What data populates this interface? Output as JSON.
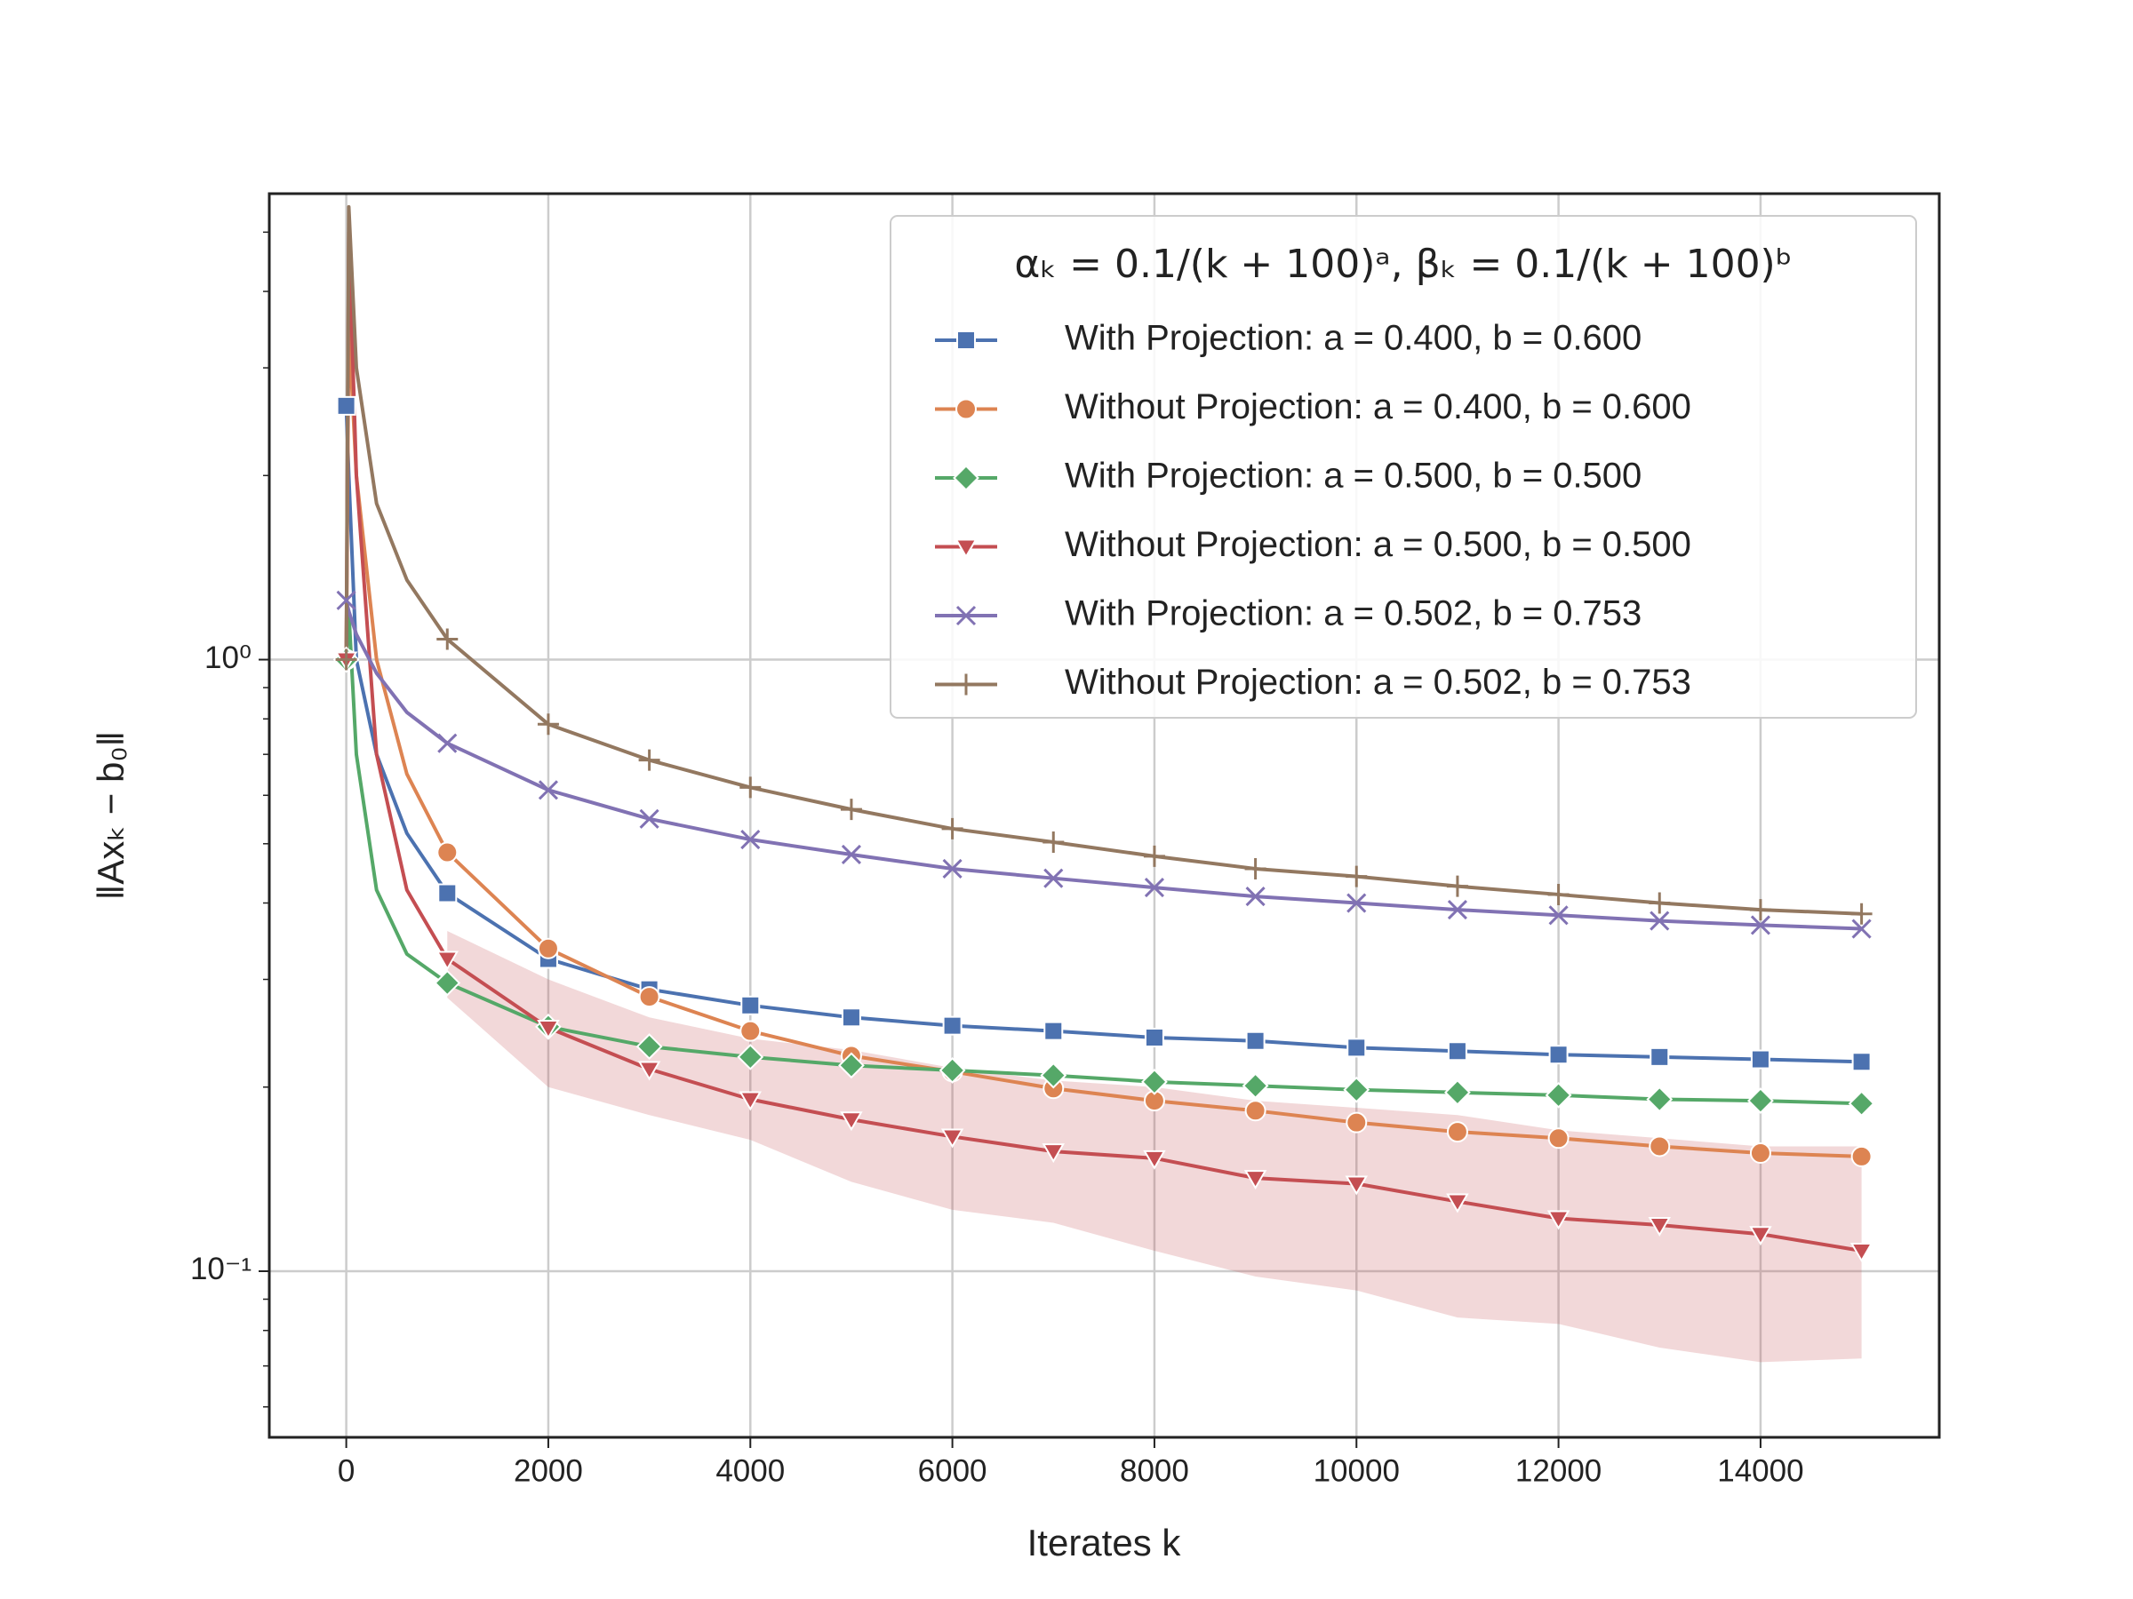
{
  "chart_data": {
    "type": "line",
    "xlabel": "Iterates k",
    "ylabel": "‖Axₖ − b₀‖",
    "legend_title": "αₖ = 0.1/(k + 100)ᵃ, βₖ = 0.1/(k + 100)ᵇ",
    "legend_position": "upper right",
    "grid": true,
    "yscale": "log",
    "xlim": [
      -762,
      15769
    ],
    "ylim": [
      0.0535,
      5.78
    ],
    "xticks": [
      0,
      2000,
      4000,
      6000,
      8000,
      10000,
      12000,
      14000
    ],
    "yticks": [
      {
        "value": 0.1,
        "label": "10⁻¹"
      },
      {
        "value": 1,
        "label": "10⁰"
      }
    ],
    "yminorticks": [
      0.06,
      0.07,
      0.08,
      0.09,
      0.2,
      0.3,
      0.4,
      0.5,
      0.6,
      0.7,
      0.8,
      0.9,
      2,
      3,
      4,
      5
    ],
    "x": [
      0,
      25,
      100,
      300,
      600,
      1000,
      2000,
      3000,
      4000,
      5000,
      6000,
      7000,
      8000,
      9000,
      10000,
      11000,
      12000,
      13000,
      14000,
      15000
    ],
    "series": [
      {
        "name": "With Projection: a = 0.400, b = 0.600",
        "color": "#4c72b0",
        "marker": "square",
        "values": [
          2.6,
          2.0,
          1.0,
          0.7,
          0.52,
          0.415,
          0.324,
          0.289,
          0.272,
          0.26,
          0.252,
          0.247,
          0.241,
          0.238,
          0.232,
          0.229,
          0.226,
          0.224,
          0.222,
          0.22
        ]
      },
      {
        "name": "Without Projection: a = 0.400, b = 0.600",
        "color": "#dd8452",
        "marker": "circle",
        "values": [
          1.0,
          3.5,
          2.0,
          1.0,
          0.65,
          0.484,
          0.337,
          0.281,
          0.247,
          0.225,
          0.212,
          0.199,
          0.19,
          0.183,
          0.175,
          0.169,
          0.165,
          0.16,
          0.156,
          0.154
        ]
      },
      {
        "name": "With Projection: a = 0.500, b = 0.500",
        "color": "#55a868",
        "marker": "diamond",
        "values": [
          1.0,
          1.2,
          0.7,
          0.42,
          0.33,
          0.296,
          0.251,
          0.233,
          0.224,
          0.217,
          0.213,
          0.209,
          0.204,
          0.201,
          0.198,
          0.196,
          0.194,
          0.191,
          0.19,
          0.188
        ]
      },
      {
        "name": "Without Projection: a = 0.500, b = 0.500",
        "color": "#c44e52",
        "marker": "triangle-down",
        "values": [
          1.0,
          5.0,
          2.0,
          0.7,
          0.42,
          0.324,
          0.25,
          0.214,
          0.191,
          0.177,
          0.166,
          0.157,
          0.153,
          0.142,
          0.139,
          0.13,
          0.122,
          0.119,
          0.115,
          0.108
        ],
        "band_lower": [
          null,
          null,
          null,
          null,
          null,
          0.28,
          0.2,
          0.18,
          0.164,
          0.14,
          0.126,
          0.12,
          0.108,
          0.098,
          0.093,
          0.084,
          0.082,
          0.075,
          0.071,
          0.072
        ],
        "band_upper": [
          null,
          null,
          null,
          null,
          null,
          0.36,
          0.3,
          0.26,
          0.24,
          0.23,
          0.215,
          0.205,
          0.2,
          0.19,
          0.185,
          0.18,
          0.17,
          0.165,
          0.16,
          0.16
        ]
      },
      {
        "name": "With Projection: a = 0.502, b = 0.753",
        "color": "#8172b3",
        "marker": "x",
        "values": [
          1.25,
          1.2,
          1.1,
          0.95,
          0.82,
          0.73,
          0.612,
          0.549,
          0.508,
          0.48,
          0.455,
          0.439,
          0.424,
          0.41,
          0.4,
          0.39,
          0.382,
          0.374,
          0.368,
          0.363
        ]
      },
      {
        "name": "Without Projection: a = 0.502, b = 0.753",
        "color": "#937860",
        "marker": "plus",
        "values": [
          1.0,
          5.5,
          3.0,
          1.8,
          1.35,
          1.08,
          0.784,
          0.685,
          0.618,
          0.569,
          0.529,
          0.503,
          0.477,
          0.455,
          0.442,
          0.426,
          0.413,
          0.4,
          0.39,
          0.384
        ]
      }
    ]
  }
}
